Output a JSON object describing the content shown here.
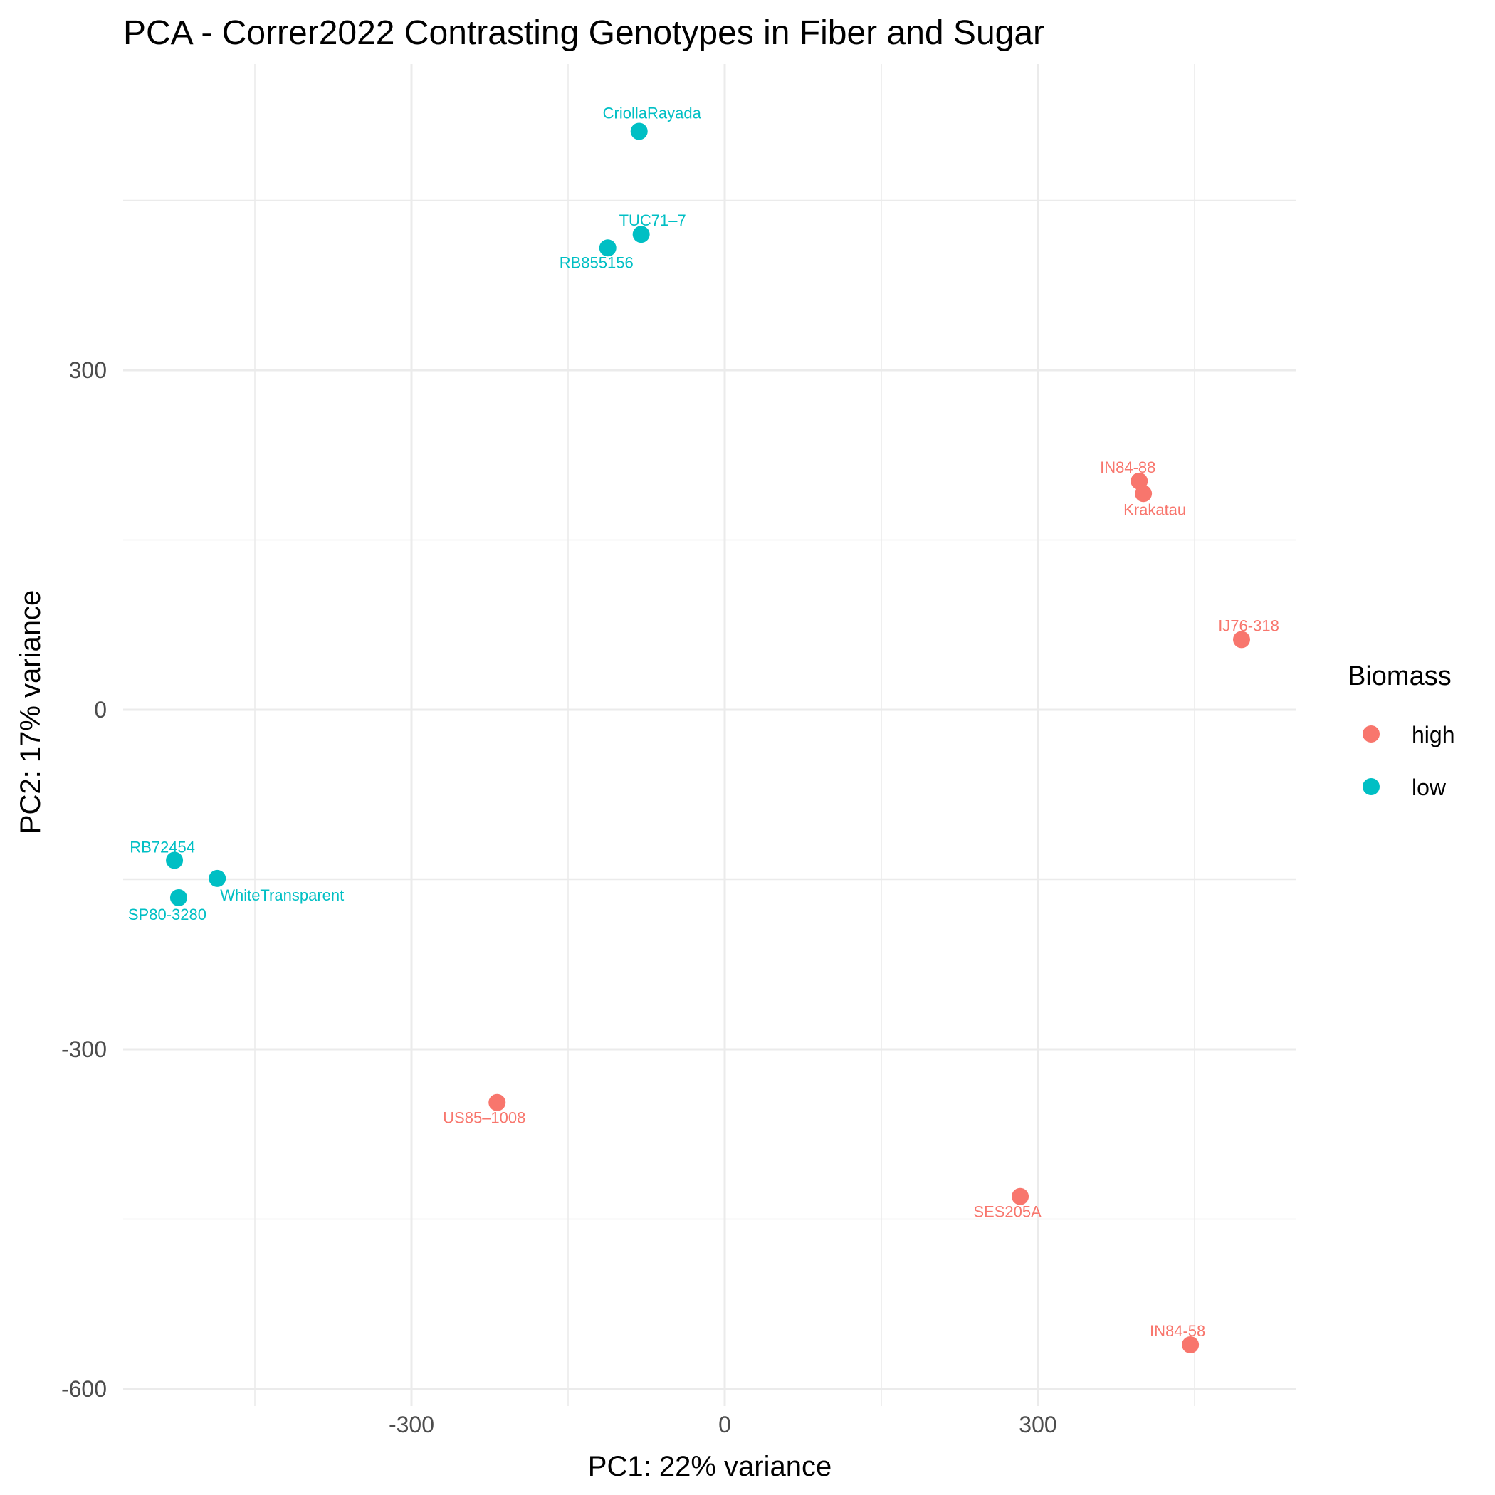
{
  "chart_data": {
    "type": "scatter",
    "title": "PCA - Correr2022 Contrasting Genotypes in Fiber and Sugar",
    "xlabel": "PC1: 22% variance",
    "ylabel": "PC2: 17% variance",
    "xlim": [
      -578,
      545
    ],
    "ylim": [
      -610,
      535
    ],
    "x_ticks": [
      -300,
      0,
      300
    ],
    "x_tick_labels": [
      "-300",
      "0",
      "300"
    ],
    "y_ticks": [
      -600,
      -300,
      0,
      300
    ],
    "y_tick_labels": [
      "-600",
      "-300",
      "0",
      "300"
    ],
    "grid": true,
    "legend": {
      "title": "Biomass",
      "position": "right",
      "entries": [
        {
          "label": "high",
          "color": "#F8766D"
        },
        {
          "label": "low",
          "color": "#00BFC4"
        }
      ]
    },
    "points": [
      {
        "label": "CriollaRayada",
        "x": -82,
        "y": 511,
        "group": "low"
      },
      {
        "label": "TUC71–7",
        "x": -80,
        "y": 420,
        "group": "low"
      },
      {
        "label": "RB855156",
        "x": -112,
        "y": 408,
        "group": "low"
      },
      {
        "label": "IN84-88",
        "x": 397,
        "y": 202,
        "group": "high"
      },
      {
        "label": "Krakatau",
        "x": 401,
        "y": 191,
        "group": "high"
      },
      {
        "label": "IJ76-318",
        "x": 495,
        "y": 62,
        "group": "high"
      },
      {
        "label": "RB72454",
        "x": -527,
        "y": -133,
        "group": "low"
      },
      {
        "label": "WhiteTransparent",
        "x": -486,
        "y": -149,
        "group": "low"
      },
      {
        "label": "SP80-3280",
        "x": -523,
        "y": -166,
        "group": "low"
      },
      {
        "label": "US85–1008",
        "x": -218,
        "y": -347,
        "group": "high"
      },
      {
        "label": "SES205A",
        "x": 283,
        "y": -430,
        "group": "high"
      },
      {
        "label": "IN84-58",
        "x": 446,
        "y": -561,
        "group": "high"
      }
    ]
  }
}
